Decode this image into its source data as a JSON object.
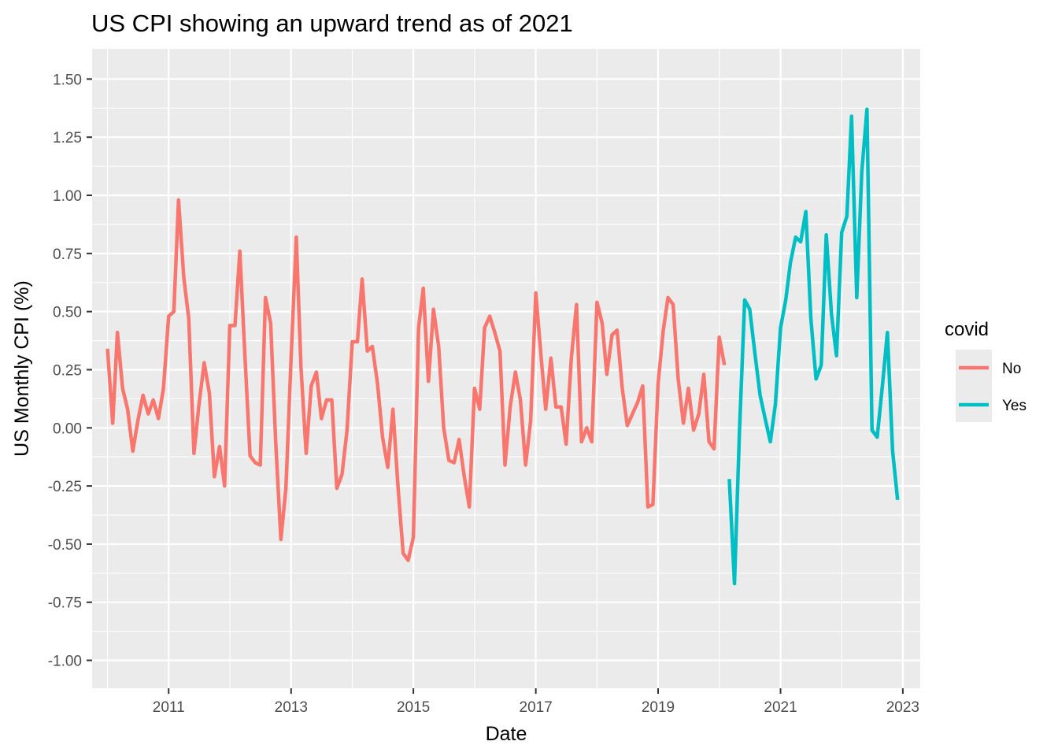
{
  "chart_data": {
    "type": "line",
    "title": "US CPI showing an upward trend as of 2021",
    "xlabel": "Date",
    "ylabel": "US Monthly CPI (%)",
    "xlim": [
      "2009-10-01",
      "2023-04-15"
    ],
    "ylim": [
      -1.12,
      1.63
    ],
    "x_ticks": [
      {
        "label": "2011",
        "date": "2011-01-01"
      },
      {
        "label": "2013",
        "date": "2013-01-01"
      },
      {
        "label": "2015",
        "date": "2015-01-01"
      },
      {
        "label": "2017",
        "date": "2017-01-01"
      },
      {
        "label": "2019",
        "date": "2019-01-01"
      },
      {
        "label": "2021",
        "date": "2021-01-01"
      },
      {
        "label": "2023",
        "date": "2023-01-01"
      }
    ],
    "y_ticks": [
      "1.50",
      "1.25",
      "1.00",
      "0.75",
      "0.50",
      "0.25",
      "0.00",
      "-0.25",
      "-0.50",
      "-0.75",
      "-1.00"
    ],
    "grid": true,
    "legend": {
      "title": "covid",
      "placement": "right",
      "entries": [
        {
          "label": "No",
          "color": "#F8766D"
        },
        {
          "label": "Yes",
          "color": "#00BFC4"
        }
      ]
    },
    "series": [
      {
        "name": "No",
        "color": "#F8766D",
        "start": "2010-01",
        "values": [
          0.34,
          0.02,
          0.41,
          0.17,
          0.08,
          -0.1,
          0.03,
          0.14,
          0.06,
          0.12,
          0.04,
          0.17,
          0.48,
          0.5,
          0.98,
          0.65,
          0.47,
          -0.11,
          0.1,
          0.28,
          0.15,
          -0.21,
          -0.08,
          -0.25,
          0.44,
          0.44,
          0.76,
          0.3,
          -0.12,
          -0.15,
          -0.16,
          0.56,
          0.45,
          -0.06,
          -0.48,
          -0.26,
          0.3,
          0.82,
          0.26,
          -0.11,
          0.18,
          0.24,
          0.04,
          0.12,
          0.12,
          -0.26,
          -0.2,
          -0.01,
          0.37,
          0.37,
          0.64,
          0.33,
          0.35,
          0.19,
          -0.04,
          -0.17,
          0.08,
          -0.25,
          -0.54,
          -0.57,
          -0.47,
          0.43,
          0.6,
          0.2,
          0.51,
          0.35,
          0.0,
          -0.14,
          -0.15,
          -0.05,
          -0.21,
          -0.34,
          0.17,
          0.08,
          0.43,
          0.48,
          0.41,
          0.33,
          -0.16,
          0.09,
          0.24,
          0.12,
          -0.16,
          0.03,
          0.58,
          0.31,
          0.08,
          0.3,
          0.09,
          0.09,
          -0.07,
          0.3,
          0.53,
          -0.06,
          0.0,
          -0.06,
          0.54,
          0.45,
          0.23,
          0.4,
          0.42,
          0.17,
          0.01,
          0.06,
          0.11,
          0.18,
          -0.34,
          -0.33,
          0.19,
          0.42,
          0.56,
          0.53,
          0.21,
          0.02,
          0.17,
          -0.01,
          0.06,
          0.23,
          -0.06,
          -0.09,
          0.39,
          0.27
        ]
      },
      {
        "name": "Yes",
        "color": "#00BFC4",
        "start": "2020-03",
        "values": [
          -0.22,
          -0.67,
          -0.01,
          0.55,
          0.51,
          0.32,
          0.14,
          0.04,
          -0.06,
          0.1,
          0.43,
          0.55,
          0.71,
          0.82,
          0.8,
          0.93,
          0.47,
          0.21,
          0.27,
          0.83,
          0.49,
          0.31,
          0.84,
          0.91,
          1.34,
          0.56,
          1.1,
          1.37,
          -0.01,
          -0.04,
          0.18,
          0.41,
          -0.1,
          -0.31
        ]
      }
    ]
  }
}
